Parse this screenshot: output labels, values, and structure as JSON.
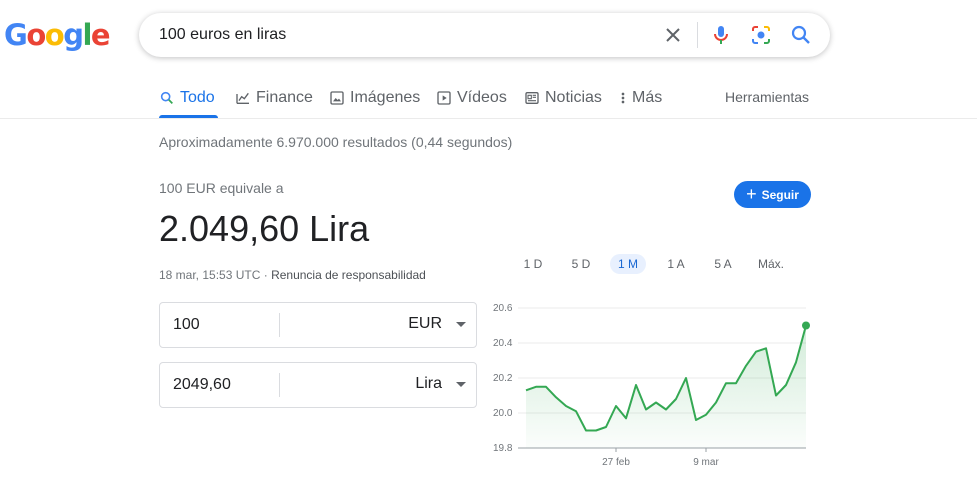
{
  "logo": {
    "letters": [
      "G",
      "o",
      "o",
      "g",
      "l",
      "e"
    ]
  },
  "search": {
    "query": "100 euros en liras"
  },
  "tabs": [
    {
      "label": "Todo",
      "icon": "search-icon"
    },
    {
      "label": "Finance",
      "icon": "finance-chart-icon"
    },
    {
      "label": "Imágenes",
      "icon": "image-icon"
    },
    {
      "label": "Vídeos",
      "icon": "play-icon"
    },
    {
      "label": "Noticias",
      "icon": "news-icon"
    },
    {
      "label": "Más",
      "icon": "more-vert-icon"
    }
  ],
  "tools_label": "Herramientas",
  "stats": "Aproximadamente 6.970.000 resultados (0,44 segundos)",
  "converter": {
    "equiv_label": "100 EUR equivale a",
    "result": "2.049,60 Lira",
    "timestamp": "18 mar, 15:53 UTC",
    "separator": " · ",
    "disclaimer": "Renuncia de responsabilidad",
    "follow_label": "Seguir",
    "from": {
      "value": "100",
      "unit": "EUR"
    },
    "to": {
      "value": "2049,60",
      "unit": "Lira"
    }
  },
  "ranges": [
    {
      "label": "1 D",
      "active": false
    },
    {
      "label": "5 D",
      "active": false
    },
    {
      "label": "1 M",
      "active": true
    },
    {
      "label": "1 A",
      "active": false
    },
    {
      "label": "5 A",
      "active": false
    },
    {
      "label": "Máx.",
      "active": false
    }
  ],
  "colors": {
    "accent": "#1a73e8",
    "line": "#34a853"
  },
  "chart_data": {
    "type": "area",
    "ylim": [
      19.8,
      20.6
    ],
    "yticks": [
      "20.6",
      "20.4",
      "20.2",
      "20.0",
      "19.8"
    ],
    "ytick_values": [
      20.6,
      20.4,
      20.2,
      20.0,
      19.8
    ],
    "x_ticks": [
      {
        "label": "27 feb",
        "index": 9
      },
      {
        "label": "9 mar",
        "index": 18
      }
    ],
    "values": [
      20.13,
      20.15,
      20.15,
      20.09,
      20.04,
      20.01,
      19.9,
      19.9,
      19.92,
      20.04,
      19.97,
      20.16,
      20.02,
      20.06,
      20.02,
      20.08,
      20.2,
      19.96,
      19.99,
      20.06,
      20.17,
      20.17,
      20.27,
      20.35,
      20.37,
      20.1,
      20.16,
      20.29,
      20.5
    ],
    "grid": true,
    "legend": "none"
  }
}
